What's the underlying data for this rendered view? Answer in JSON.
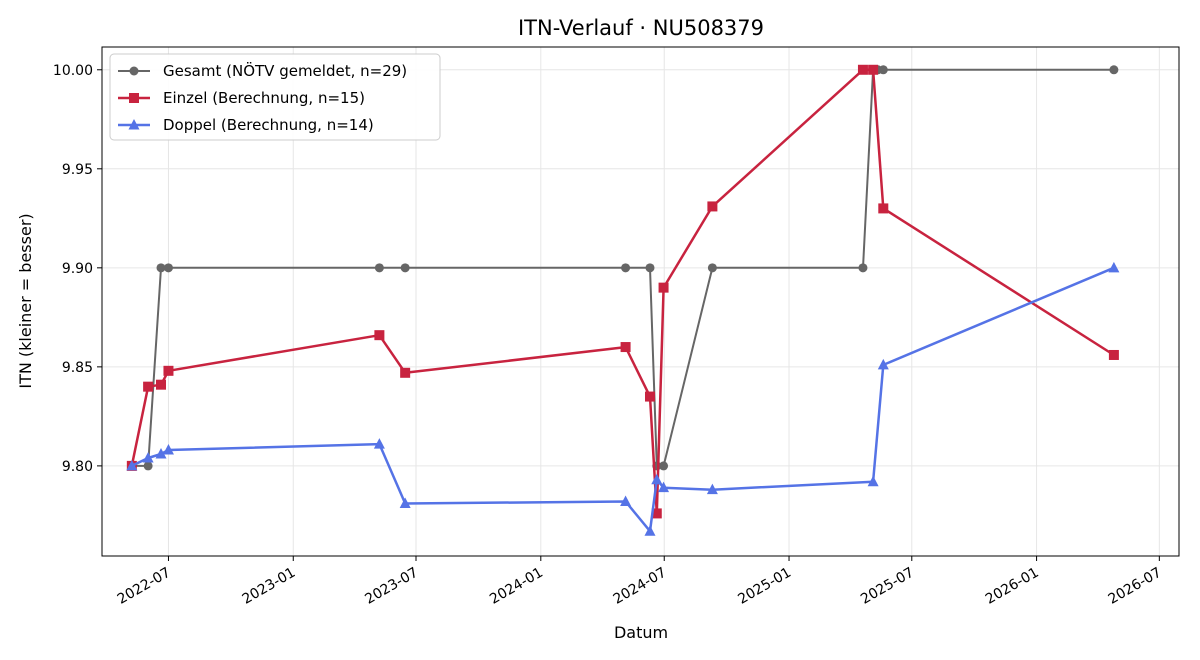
{
  "chart_data": {
    "type": "line",
    "title": "ITN-Verlauf · NU508379",
    "xlabel": "Datum",
    "ylabel": "ITN  (kleiner = besser)",
    "xlim": [
      "2022-03-25",
      "2026-07-30"
    ],
    "ylim": [
      9.7545,
      10.0115
    ],
    "x_ticks": [
      "2022-07-01",
      "2023-01-01",
      "2023-07-01",
      "2024-01-01",
      "2024-07-01",
      "2025-01-01",
      "2025-07-01",
      "2026-01-01",
      "2026-07-01"
    ],
    "x_tick_labels": [
      "2022-07",
      "2023-01",
      "2023-07",
      "2024-01",
      "2024-07",
      "2025-01",
      "2025-07",
      "2026-01",
      "2026-07"
    ],
    "y_ticks": [
      9.8,
      9.85,
      9.9,
      9.95,
      10.0
    ],
    "y_tick_labels": [
      "9.80",
      "9.85",
      "9.90",
      "9.95",
      "10.00"
    ],
    "grid": true,
    "legend_position": "top-left",
    "series": [
      {
        "name": "Gesamt (NÖTV gemeldet, n=29)",
        "color": "#666666",
        "marker": "circle",
        "x": [
          "2022-05-08",
          "2022-06-01",
          "2022-06-20",
          "2022-07-01",
          "2023-05-08",
          "2023-06-15",
          "2024-05-05",
          "2024-06-10",
          "2024-06-20",
          "2024-06-30",
          "2024-09-10",
          "2025-04-20",
          "2025-05-05",
          "2025-05-12",
          "2025-05-20",
          "2026-04-25"
        ],
        "values": [
          9.8,
          9.8,
          9.9,
          9.9,
          9.9,
          9.9,
          9.9,
          9.9,
          9.8,
          9.8,
          9.9,
          9.9,
          10.0,
          10.0,
          10.0,
          10.0
        ]
      },
      {
        "name": "Einzel (Berechnung, n=15)",
        "color": "#c8233f",
        "marker": "square",
        "x": [
          "2022-05-08",
          "2022-06-01",
          "2022-06-20",
          "2022-07-01",
          "2023-05-08",
          "2023-06-15",
          "2024-05-05",
          "2024-06-10",
          "2024-06-20",
          "2024-06-30",
          "2024-09-10",
          "2025-04-20",
          "2025-05-05",
          "2025-05-20",
          "2026-04-25"
        ],
        "values": [
          9.8,
          9.84,
          9.841,
          9.848,
          9.866,
          9.847,
          9.86,
          9.835,
          9.776,
          9.89,
          9.931,
          10.0,
          10.0,
          9.93,
          9.856
        ]
      },
      {
        "name": "Doppel (Berechnung, n=14)",
        "color": "#5573e6",
        "marker": "triangle",
        "x": [
          "2022-05-08",
          "2022-06-01",
          "2022-06-20",
          "2022-07-01",
          "2023-05-08",
          "2023-06-15",
          "2024-05-05",
          "2024-06-10",
          "2024-06-20",
          "2024-06-30",
          "2024-09-10",
          "2025-05-05",
          "2025-05-20",
          "2026-04-25"
        ],
        "values": [
          9.8,
          9.804,
          9.806,
          9.808,
          9.811,
          9.781,
          9.782,
          9.767,
          9.793,
          9.789,
          9.788,
          9.792,
          9.851,
          9.9
        ]
      }
    ]
  }
}
